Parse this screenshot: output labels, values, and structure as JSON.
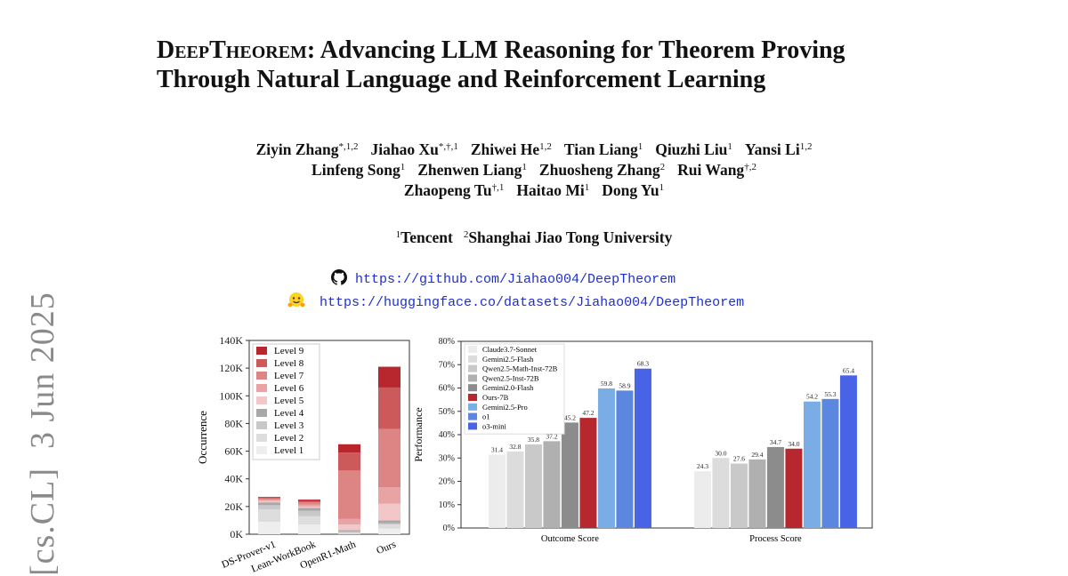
{
  "arxiv_stamp": "[cs.CL]  3 Jun 2025",
  "title": {
    "part1_smallcaps": "DeepTheorem",
    "part1_rest": ": Advancing LLM Reasoning for Theorem Proving",
    "line2": "Through Natural Language and Reinforcement Learning"
  },
  "authors": {
    "row1": [
      {
        "name": "Ziyin Zhang",
        "sup": "*,1,2"
      },
      {
        "name": "Jiahao Xu",
        "sup": "*,†,1"
      },
      {
        "name": "Zhiwei He",
        "sup": "1,2"
      },
      {
        "name": "Tian Liang",
        "sup": "1"
      },
      {
        "name": "Qiuzhi Liu",
        "sup": "1"
      },
      {
        "name": "Yansi Li",
        "sup": "1,2"
      }
    ],
    "row2": [
      {
        "name": "Linfeng Song",
        "sup": "1"
      },
      {
        "name": "Zhenwen Liang",
        "sup": "1"
      },
      {
        "name": "Zhuosheng Zhang",
        "sup": "2"
      },
      {
        "name": "Rui Wang",
        "sup": "†,2"
      }
    ],
    "row3": [
      {
        "name": "Zhaopeng Tu",
        "sup": "†,1"
      },
      {
        "name": "Haitao Mi",
        "sup": "1"
      },
      {
        "name": "Dong Yu",
        "sup": "1"
      }
    ]
  },
  "affiliations": [
    {
      "sup": "1",
      "name": "Tencent"
    },
    {
      "sup": "2",
      "name": "Shanghai Jiao Tong University"
    }
  ],
  "links": {
    "github": "https://github.com/Jiahao004/DeepTheorem",
    "huggingface": "https://huggingface.co/datasets/Jiahao004/DeepTheorem",
    "github_icon": "github-icon",
    "huggingface_icon": "huggingface-icon"
  },
  "chart_data": [
    {
      "type": "bar",
      "stacked": true,
      "ylabel": "Occurrence",
      "ylim": [
        0,
        140000
      ],
      "yticks": [
        "0K",
        "20K",
        "40K",
        "60K",
        "80K",
        "100K",
        "120K",
        "140K"
      ],
      "categories": [
        "DS-Prover-v1",
        "Lean-WorkBook",
        "OpenR1-Math",
        "Ours"
      ],
      "legend_position": "top-left",
      "series": [
        {
          "name": "Level 1",
          "color": "#eeeeee",
          "values": [
            9000,
            7000,
            0,
            4000
          ]
        },
        {
          "name": "Level 2",
          "color": "#dddddd",
          "values": [
            9000,
            6000,
            1000,
            3000
          ]
        },
        {
          "name": "Level 3",
          "color": "#c8c8c8",
          "values": [
            3000,
            4000,
            1000,
            1000
          ]
        },
        {
          "name": "Level 4",
          "color": "#a8a8a8",
          "values": [
            2000,
            2000,
            1000,
            2000
          ]
        },
        {
          "name": "Level 5",
          "color": "#f3c7c7",
          "values": [
            1000,
            1000,
            4000,
            12000
          ]
        },
        {
          "name": "Level 6",
          "color": "#e8a4a4",
          "values": [
            1000,
            1500,
            4000,
            12000
          ]
        },
        {
          "name": "Level 7",
          "color": "#dd8585",
          "values": [
            1000,
            1500,
            35000,
            42000
          ]
        },
        {
          "name": "Level 8",
          "color": "#cc5a5a",
          "values": [
            500,
            1000,
            13000,
            30000
          ]
        },
        {
          "name": "Level 9",
          "color": "#b8262e",
          "values": [
            500,
            1000,
            6000,
            15000
          ]
        }
      ]
    },
    {
      "type": "bar",
      "ylabel": "Performance",
      "xlabel": "",
      "ylim": [
        0,
        80
      ],
      "yticks": [
        "0%",
        "10%",
        "20%",
        "30%",
        "40%",
        "50%",
        "60%",
        "70%",
        "80%"
      ],
      "categories": [
        "Outcome Score",
        "Process Score"
      ],
      "legend_position": "top-left",
      "series": [
        {
          "name": "Claude3.7-Sonnet",
          "color": "#ececec",
          "values": [
            31.4,
            24.3
          ]
        },
        {
          "name": "Gemini2.5-Flash",
          "color": "#dcdcdc",
          "values": [
            32.8,
            30.0
          ]
        },
        {
          "name": "Qwen2.5-Math-Inst-72B",
          "color": "#c9c9c9",
          "values": [
            35.8,
            27.6
          ]
        },
        {
          "name": "Qwen2.5-Inst-72B",
          "color": "#b0b0b0",
          "values": [
            37.2,
            29.4
          ]
        },
        {
          "name": "Gemini2.0-Flash",
          "color": "#8c8c8c",
          "values": [
            45.2,
            34.7
          ]
        },
        {
          "name": "Ours-7B",
          "color": "#b7282e",
          "values": [
            47.2,
            34.0
          ]
        },
        {
          "name": "Gemini2.5-Pro",
          "color": "#7aace6",
          "values": [
            59.8,
            54.2
          ]
        },
        {
          "name": "o1",
          "color": "#5b87e0",
          "values": [
            58.9,
            55.3
          ]
        },
        {
          "name": "o3-mini",
          "color": "#4863e6",
          "values": [
            68.3,
            65.4
          ]
        }
      ]
    }
  ]
}
